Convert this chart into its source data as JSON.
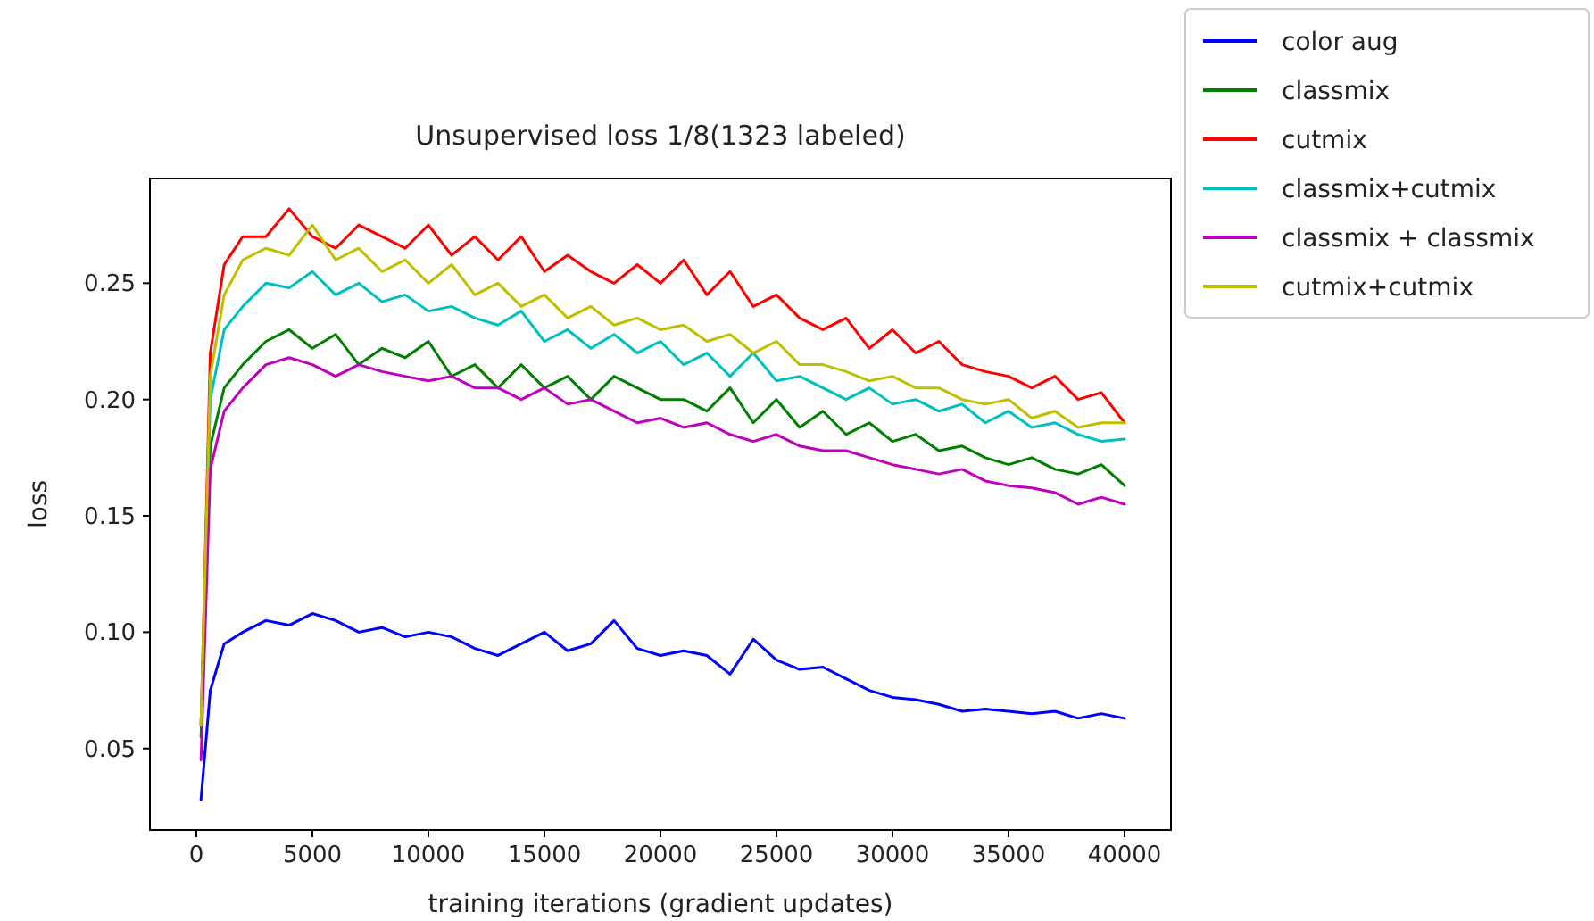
{
  "chart_data": {
    "type": "line",
    "title": "Unsupervised loss 1/8(1323 labeled)",
    "xlabel": "training iterations (gradient updates)",
    "ylabel": "loss",
    "x": [
      200,
      600,
      1200,
      2000,
      3000,
      4000,
      5000,
      6000,
      7000,
      8000,
      9000,
      10000,
      11000,
      12000,
      13000,
      14000,
      15000,
      16000,
      17000,
      18000,
      19000,
      20000,
      21000,
      22000,
      23000,
      24000,
      25000,
      26000,
      27000,
      28000,
      29000,
      30000,
      31000,
      32000,
      33000,
      34000,
      35000,
      36000,
      37000,
      38000,
      39000,
      40000
    ],
    "xlim": [
      -2000,
      42000
    ],
    "xticks": [
      0,
      5000,
      10000,
      15000,
      20000,
      25000,
      30000,
      35000,
      40000
    ],
    "ylim": [
      0.015,
      0.295
    ],
    "yticks": [
      {
        "value": 0.05,
        "label": "0.05"
      },
      {
        "value": 0.1,
        "label": "0.10"
      },
      {
        "value": 0.15,
        "label": "0.15"
      },
      {
        "value": 0.2,
        "label": "0.20"
      },
      {
        "value": 0.25,
        "label": "0.25"
      }
    ],
    "legend": "top right",
    "grid": false,
    "marker": "none",
    "line_style": "solid",
    "series": [
      {
        "name": "color aug",
        "color": "#0000ff",
        "values": [
          0.028,
          0.075,
          0.095,
          0.1,
          0.105,
          0.103,
          0.108,
          0.105,
          0.1,
          0.102,
          0.098,
          0.1,
          0.098,
          0.093,
          0.09,
          0.095,
          0.1,
          0.092,
          0.095,
          0.105,
          0.093,
          0.09,
          0.092,
          0.09,
          0.082,
          0.097,
          0.088,
          0.084,
          0.085,
          0.08,
          0.075,
          0.072,
          0.071,
          0.069,
          0.066,
          0.067,
          0.066,
          0.065,
          0.066,
          0.063,
          0.065,
          0.063
        ]
      },
      {
        "name": "classmix",
        "color": "#008000",
        "values": [
          0.055,
          0.18,
          0.205,
          0.215,
          0.225,
          0.23,
          0.222,
          0.228,
          0.215,
          0.222,
          0.218,
          0.225,
          0.21,
          0.215,
          0.205,
          0.215,
          0.205,
          0.21,
          0.2,
          0.21,
          0.205,
          0.2,
          0.2,
          0.195,
          0.205,
          0.19,
          0.2,
          0.188,
          0.195,
          0.185,
          0.19,
          0.182,
          0.185,
          0.178,
          0.18,
          0.175,
          0.172,
          0.175,
          0.17,
          0.168,
          0.172,
          0.163
        ]
      },
      {
        "name": "cutmix",
        "color": "#ff0000",
        "values": [
          0.06,
          0.22,
          0.258,
          0.27,
          0.27,
          0.282,
          0.27,
          0.265,
          0.275,
          0.27,
          0.265,
          0.275,
          0.262,
          0.27,
          0.26,
          0.27,
          0.255,
          0.262,
          0.255,
          0.25,
          0.258,
          0.25,
          0.26,
          0.245,
          0.255,
          0.24,
          0.245,
          0.235,
          0.23,
          0.235,
          0.222,
          0.23,
          0.22,
          0.225,
          0.215,
          0.212,
          0.21,
          0.205,
          0.21,
          0.2,
          0.203,
          0.19
        ]
      },
      {
        "name": "classmix+cutmix",
        "color": "#00bfbf",
        "values": [
          0.06,
          0.2,
          0.23,
          0.24,
          0.25,
          0.248,
          0.255,
          0.245,
          0.25,
          0.242,
          0.245,
          0.238,
          0.24,
          0.235,
          0.232,
          0.238,
          0.225,
          0.23,
          0.222,
          0.228,
          0.22,
          0.225,
          0.215,
          0.22,
          0.21,
          0.22,
          0.208,
          0.21,
          0.205,
          0.2,
          0.205,
          0.198,
          0.2,
          0.195,
          0.198,
          0.19,
          0.195,
          0.188,
          0.19,
          0.185,
          0.182,
          0.183
        ]
      },
      {
        "name": "classmix + classmix",
        "color": "#bf00bf",
        "values": [
          0.045,
          0.17,
          0.195,
          0.205,
          0.215,
          0.218,
          0.215,
          0.21,
          0.215,
          0.212,
          0.21,
          0.208,
          0.21,
          0.205,
          0.205,
          0.2,
          0.205,
          0.198,
          0.2,
          0.195,
          0.19,
          0.192,
          0.188,
          0.19,
          0.185,
          0.182,
          0.185,
          0.18,
          0.178,
          0.178,
          0.175,
          0.172,
          0.17,
          0.168,
          0.17,
          0.165,
          0.163,
          0.162,
          0.16,
          0.155,
          0.158,
          0.155
        ]
      },
      {
        "name": "cutmix+cutmix",
        "color": "#bfbf00",
        "values": [
          0.06,
          0.21,
          0.245,
          0.26,
          0.265,
          0.262,
          0.275,
          0.26,
          0.265,
          0.255,
          0.26,
          0.25,
          0.258,
          0.245,
          0.25,
          0.24,
          0.245,
          0.235,
          0.24,
          0.232,
          0.235,
          0.23,
          0.232,
          0.225,
          0.228,
          0.22,
          0.225,
          0.215,
          0.215,
          0.212,
          0.208,
          0.21,
          0.205,
          0.205,
          0.2,
          0.198,
          0.2,
          0.192,
          0.195,
          0.188,
          0.19,
          0.19
        ]
      }
    ]
  }
}
